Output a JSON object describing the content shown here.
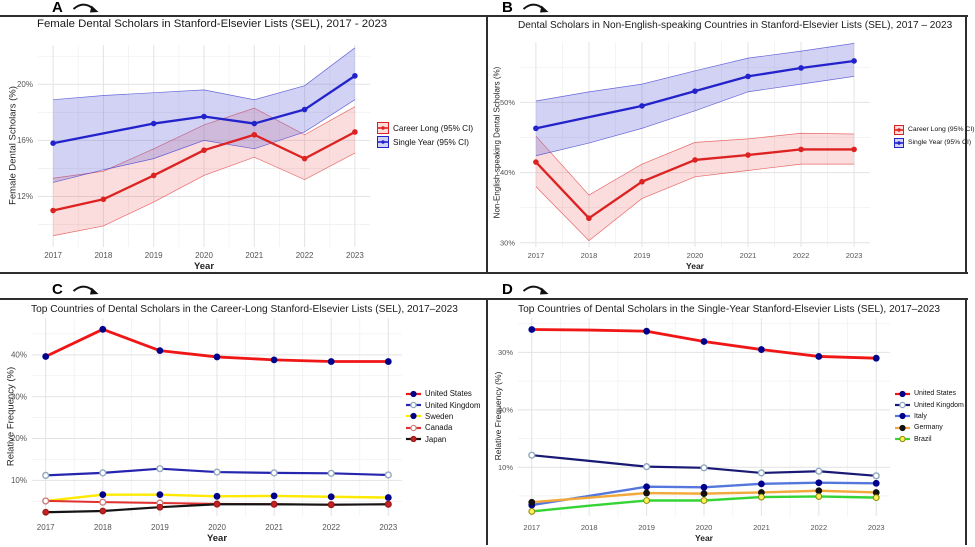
{
  "chart_data": [
    {
      "type": "line",
      "panel_label": "A",
      "title": "Female Dental Scholars in Stanford-Elsevier Lists (SEL), 2017 - 2023",
      "xlabel": "Year",
      "ylabel": "Female Dental Scholars (%)",
      "x": [
        2017,
        2018,
        2019,
        2020,
        2021,
        2022,
        2023
      ],
      "ylim": [
        8.4,
        22.8
      ],
      "yticks": [
        {
          "value": 12,
          "label": "12%"
        },
        {
          "value": 16,
          "label": "16%"
        },
        {
          "value": 20,
          "label": "20%"
        }
      ],
      "y_minor": [
        10,
        14,
        18,
        22
      ],
      "grid": true,
      "legend_position": "right",
      "legend_style": "ribbon",
      "series": [
        {
          "name": "Career Long (95% CI)",
          "line_color": "#dd2222",
          "ribbon_fill": "rgba(238,100,100,0.22)",
          "values": [
            11.0,
            11.8,
            13.5,
            15.3,
            16.4,
            14.7,
            16.6
          ],
          "ci_lower": [
            9.2,
            9.9,
            11.6,
            13.5,
            14.8,
            13.2,
            15.1
          ],
          "ci_upper": [
            13.3,
            13.8,
            15.4,
            17.1,
            18.3,
            16.4,
            18.4
          ],
          "skip_marker_x": []
        },
        {
          "name": "Single Year (95% CI)",
          "line_color": "#2323cc",
          "ribbon_fill": "rgba(105,105,220,0.30)",
          "values": [
            15.8,
            16.5,
            17.2,
            17.7,
            17.2,
            18.2,
            20.6
          ],
          "ci_lower": [
            13.0,
            13.9,
            14.7,
            16.0,
            15.4,
            16.6,
            18.9
          ],
          "ci_upper": [
            18.9,
            19.2,
            19.4,
            19.6,
            18.9,
            19.9,
            22.6
          ],
          "skip_marker_x": [
            2018
          ]
        }
      ]
    },
    {
      "type": "line",
      "panel_label": "B",
      "title": "Dental Scholars in Non-English-speaking Countries in Stanford-Elsevier Lists (SEL), 2017 – 2023",
      "xlabel": "Year",
      "ylabel": "Non-English-speaking Dental Scholars (%)",
      "x": [
        2017,
        2018,
        2019,
        2020,
        2021,
        2022,
        2023
      ],
      "ylim": [
        29.4,
        58.6
      ],
      "yticks": [
        {
          "value": 30,
          "label": "30%"
        },
        {
          "value": 40,
          "label": "40%"
        },
        {
          "value": 50,
          "label": "50%"
        }
      ],
      "y_minor": [
        35,
        45,
        55
      ],
      "grid": true,
      "legend_position": "right",
      "legend_style": "ribbon",
      "series": [
        {
          "name": "Career Long (95% CI)",
          "line_color": "#dd2222",
          "ribbon_fill": "rgba(238,100,100,0.22)",
          "values": [
            41.5,
            33.5,
            38.7,
            41.8,
            42.5,
            43.3,
            43.3
          ],
          "ci_lower": [
            38.0,
            30.3,
            36.3,
            39.4,
            40.3,
            41.2,
            41.2
          ],
          "ci_upper": [
            45.2,
            36.8,
            41.2,
            44.3,
            44.8,
            45.6,
            45.5
          ],
          "skip_marker_x": []
        },
        {
          "name": "Single Year (95% CI)",
          "line_color": "#2323cc",
          "ribbon_fill": "rgba(105,105,220,0.30)",
          "values": [
            46.3,
            47.9,
            49.5,
            51.6,
            53.7,
            54.9,
            55.9
          ],
          "ci_lower": [
            42.4,
            44.2,
            46.3,
            48.8,
            51.5,
            52.6,
            53.7
          ],
          "ci_upper": [
            50.2,
            51.5,
            52.6,
            54.5,
            56.3,
            57.3,
            58.4
          ],
          "skip_marker_x": [
            2018
          ]
        }
      ]
    },
    {
      "type": "line",
      "panel_label": "C",
      "title": "Top Countries of Dental Scholars in the Career-Long Stanford-Elsevier Lists (SEL), 2017–2023",
      "xlabel": "Year",
      "ylabel": "Relative Frequency (%)",
      "x": [
        2017,
        2018,
        2019,
        2020,
        2021,
        2022,
        2023
      ],
      "ylim": [
        1.5,
        48.8
      ],
      "yticks": [
        {
          "value": 10,
          "label": "10%"
        },
        {
          "value": 20,
          "label": "20%"
        },
        {
          "value": 30,
          "label": "30%"
        },
        {
          "value": 40,
          "label": "40%"
        }
      ],
      "y_minor": [
        5,
        15,
        25,
        35,
        45
      ],
      "grid": true,
      "legend_position": "right",
      "legend_style": "line",
      "series": [
        {
          "name": "United States",
          "line_color": "#f01616",
          "marker_fill": "#00008b",
          "marker_stroke": "#00008b",
          "line_width": 2.8,
          "values": [
            39.6,
            46.1,
            41.0,
            39.5,
            38.8,
            38.4,
            38.4
          ],
          "skip_marker_x": []
        },
        {
          "name": "United Kingdom",
          "line_color": "#2525b0",
          "marker_fill": "#ffffff",
          "marker_stroke": "#8fa8bf",
          "line_width": 2.2,
          "values": [
            11.2,
            11.8,
            12.8,
            12.0,
            11.8,
            11.7,
            11.3
          ],
          "skip_marker_x": []
        },
        {
          "name": "Sweden",
          "line_color": "#ffe900",
          "marker_fill": "#00008b",
          "marker_stroke": "#00008b",
          "line_width": 2.4,
          "values": [
            5.1,
            6.6,
            6.6,
            6.2,
            6.3,
            6.1,
            5.9
          ],
          "skip_marker_x": []
        },
        {
          "name": "Canada",
          "line_color": "#e03030",
          "marker_fill": "#ffffff",
          "marker_stroke": "#d08080",
          "line_width": 2.0,
          "values": [
            5.1,
            4.8,
            4.6,
            4.4,
            4.3,
            4.2,
            4.3
          ],
          "skip_marker_x": []
        },
        {
          "name": "Japan",
          "line_color": "#141414",
          "marker_fill": "#c22222",
          "marker_stroke": "#9a1515",
          "line_width": 2.2,
          "values": [
            2.4,
            2.7,
            3.6,
            4.3,
            4.3,
            4.2,
            4.3
          ],
          "skip_marker_x": []
        }
      ]
    },
    {
      "type": "line",
      "panel_label": "D",
      "title": "Top Countries of Dental Scholars in the Single-Year Stanford-Elsevier Lists (SEL), 2017–2023",
      "xlabel": "Year",
      "ylabel": "Relative Frequency (%)",
      "x": [
        2017,
        2018,
        2019,
        2020,
        2021,
        2022,
        2023
      ],
      "ylim": [
        1.5,
        36.0
      ],
      "yticks": [
        {
          "value": 10,
          "label": "10%"
        },
        {
          "value": 20,
          "label": "20%"
        },
        {
          "value": 30,
          "label": "30%"
        }
      ],
      "y_minor": [
        5,
        15,
        25,
        35
      ],
      "grid": true,
      "legend_position": "right",
      "legend_style": "line",
      "series": [
        {
          "name": "United States",
          "line_color": "#f01616",
          "marker_fill": "#00008b",
          "marker_stroke": "#00008b",
          "line_width": 2.8,
          "values": [
            34.0,
            33.9,
            33.7,
            31.9,
            30.5,
            29.3,
            29.0
          ],
          "skip_marker_x": [
            2018
          ]
        },
        {
          "name": "United Kingdom",
          "line_color": "#181875",
          "marker_fill": "#ffffff",
          "marker_stroke": "#8fa8bf",
          "line_width": 2.2,
          "values": [
            12.1,
            11.1,
            10.1,
            9.9,
            9.0,
            9.3,
            8.5
          ],
          "skip_marker_x": [
            2018
          ]
        },
        {
          "name": "Italy",
          "line_color": "#5577dd",
          "marker_fill": "#00008b",
          "marker_stroke": "#00008b",
          "line_width": 2.4,
          "values": [
            3.4,
            5.0,
            6.6,
            6.5,
            7.1,
            7.3,
            7.2
          ],
          "skip_marker_x": [
            2018
          ]
        },
        {
          "name": "Germany",
          "line_color": "#f2a93b",
          "marker_fill": "#111111",
          "marker_stroke": "#111111",
          "line_width": 2.4,
          "values": [
            3.9,
            4.7,
            5.5,
            5.4,
            5.6,
            5.9,
            5.6
          ],
          "skip_marker_x": [
            2018
          ]
        },
        {
          "name": "Brazil",
          "line_color": "#35d435",
          "marker_fill": "#ffef5e",
          "marker_stroke": "#888800",
          "line_width": 2.4,
          "values": [
            2.3,
            3.3,
            4.2,
            4.2,
            4.8,
            4.9,
            4.7
          ],
          "skip_marker_x": [
            2018
          ]
        }
      ]
    }
  ],
  "style": {
    "grid_major_color": "#e3e3e3",
    "grid_minor_color": "#f1f1f1",
    "tick_text_color": "#555555",
    "divider_color": "#2e2e2e",
    "background": "#ffffff"
  }
}
